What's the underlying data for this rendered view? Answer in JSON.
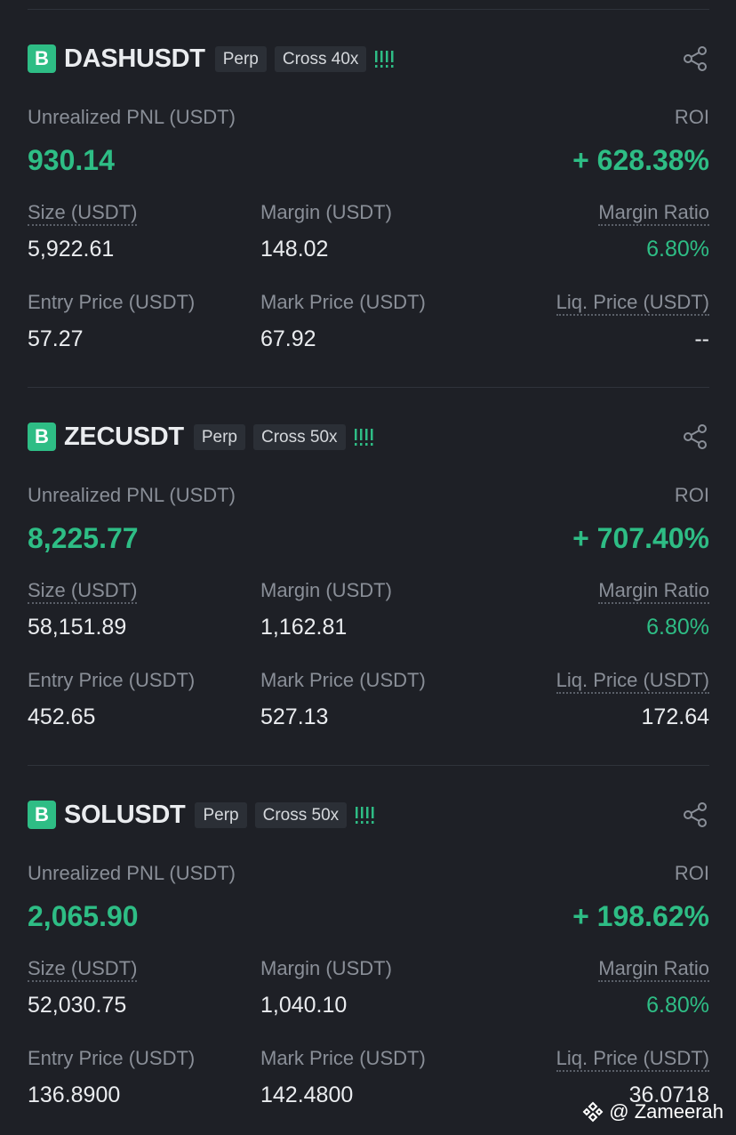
{
  "positions": [
    {
      "badge": "B",
      "symbol": "DASHUSDT",
      "type": "Perp",
      "margin_mode": "Cross 40x",
      "pnl_label": "Unrealized PNL (USDT)",
      "pnl": "930.14",
      "roi_label": "ROI",
      "roi": "+ 628.38%",
      "fields": [
        {
          "label": "Size (USDT)",
          "value": "5,922.61"
        },
        {
          "label": "Margin (USDT)",
          "value": "148.02"
        },
        {
          "label": "Margin Ratio",
          "value": "6.80%"
        },
        {
          "label": "Entry Price (USDT)",
          "value": "57.27"
        },
        {
          "label": "Mark Price (USDT)",
          "value": "67.92"
        },
        {
          "label": "Liq. Price (USDT)",
          "value": "--"
        }
      ]
    },
    {
      "badge": "B",
      "symbol": "ZECUSDT",
      "type": "Perp",
      "margin_mode": "Cross 50x",
      "pnl_label": "Unrealized PNL (USDT)",
      "pnl": "8,225.77",
      "roi_label": "ROI",
      "roi": "+ 707.40%",
      "fields": [
        {
          "label": "Size (USDT)",
          "value": "58,151.89"
        },
        {
          "label": "Margin (USDT)",
          "value": "1,162.81"
        },
        {
          "label": "Margin Ratio",
          "value": "6.80%"
        },
        {
          "label": "Entry Price (USDT)",
          "value": "452.65"
        },
        {
          "label": "Mark Price (USDT)",
          "value": "527.13"
        },
        {
          "label": "Liq. Price (USDT)",
          "value": "172.64"
        }
      ]
    },
    {
      "badge": "B",
      "symbol": "SOLUSDT",
      "type": "Perp",
      "margin_mode": "Cross 50x",
      "pnl_label": "Unrealized PNL (USDT)",
      "pnl": "2,065.90",
      "roi_label": "ROI",
      "roi": "+ 198.62%",
      "fields": [
        {
          "label": "Size (USDT)",
          "value": "52,030.75"
        },
        {
          "label": "Margin (USDT)",
          "value": "1,040.10"
        },
        {
          "label": "Margin Ratio",
          "value": "6.80%"
        },
        {
          "label": "Entry Price (USDT)",
          "value": "136.8900"
        },
        {
          "label": "Mark Price (USDT)",
          "value": "142.4800"
        },
        {
          "label": "Liq. Price (USDT)",
          "value": "36.0718"
        }
      ]
    }
  ],
  "watermark": "@ Zameerah"
}
